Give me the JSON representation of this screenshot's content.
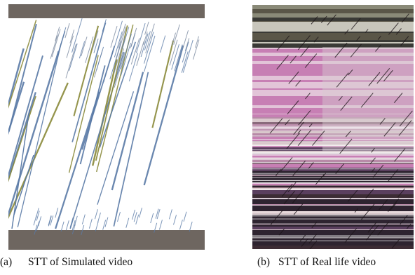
{
  "figure": {
    "panels": [
      {
        "tag": "(a)",
        "caption": "STT of Simulated video"
      },
      {
        "tag": "(b)",
        "caption": "STT of Real life video"
      }
    ]
  },
  "colors": {
    "band_gray": "#6e6660",
    "track_olive": "#8a8a3a",
    "track_blue": "#5a7aa6",
    "real_pink": "#c77fb4",
    "real_purple": "#5a3f5e",
    "real_dark": "#2e2430"
  }
}
